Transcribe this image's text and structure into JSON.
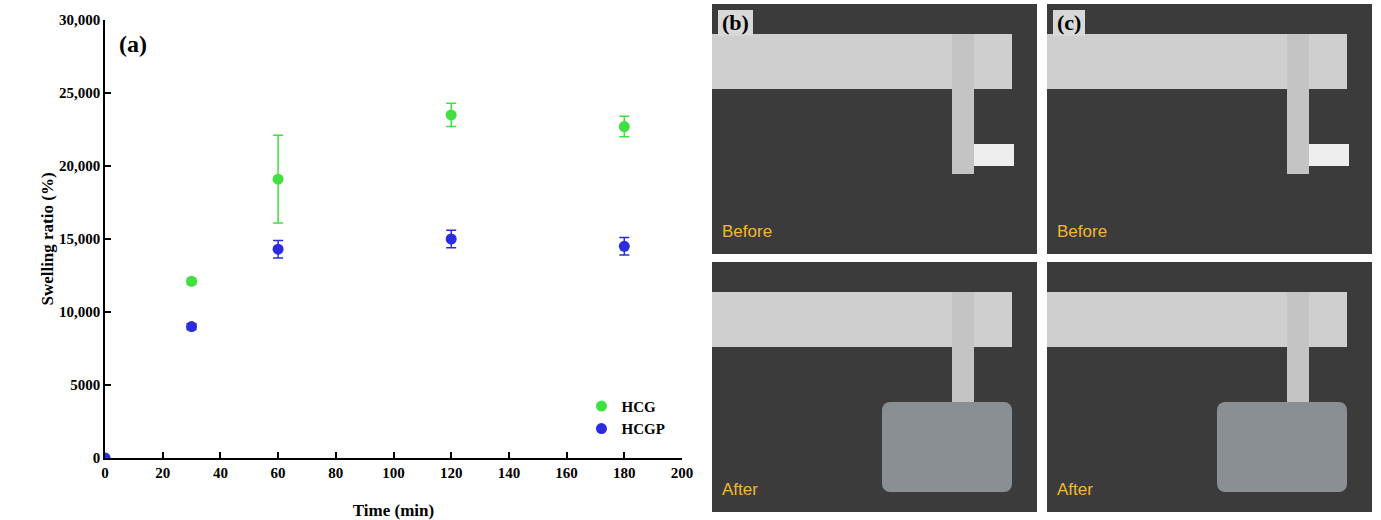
{
  "chart_data": {
    "type": "scatter",
    "x_label": "Time (min)",
    "y_label": "Swelling ratio (%)",
    "annotations": [
      {
        "text": "(a)"
      }
    ],
    "series": [
      {
        "name": "HCG",
        "color": "#3fe03f",
        "marker": "circle",
        "x": [
          0,
          30,
          60,
          120,
          180
        ],
        "values": [
          0,
          12100,
          19100,
          23500,
          22700
        ],
        "errors": [
          0,
          200,
          3000,
          800,
          700
        ]
      },
      {
        "name": "HCGP",
        "color": "#2b2be0",
        "marker": "circle",
        "x": [
          0,
          30,
          60,
          120,
          180
        ],
        "values": [
          0,
          9000,
          14300,
          15000,
          14500
        ],
        "errors": [
          0,
          200,
          600,
          600,
          600
        ]
      }
    ],
    "xlim": [
      0,
      200
    ],
    "xticks": [
      0,
      20,
      40,
      60,
      80,
      100,
      120,
      140,
      160,
      180,
      200
    ],
    "ylim": [
      0,
      30000
    ],
    "yticks": [
      0,
      5000,
      {
        "value": 10000,
        "label": "10,000"
      },
      {
        "value": 15000,
        "label": "15,000"
      },
      {
        "value": 20000,
        "label": "20,000"
      },
      {
        "value": 25000,
        "label": "25,000"
      },
      {
        "value": 30000,
        "label": "30,000"
      }
    ],
    "grid": false,
    "legend": "lower right"
  },
  "photos": [
    {
      "label": "(b)",
      "top": "Before",
      "bottom": "After"
    },
    {
      "label": "(c)",
      "top": "Before",
      "bottom": "After"
    }
  ]
}
